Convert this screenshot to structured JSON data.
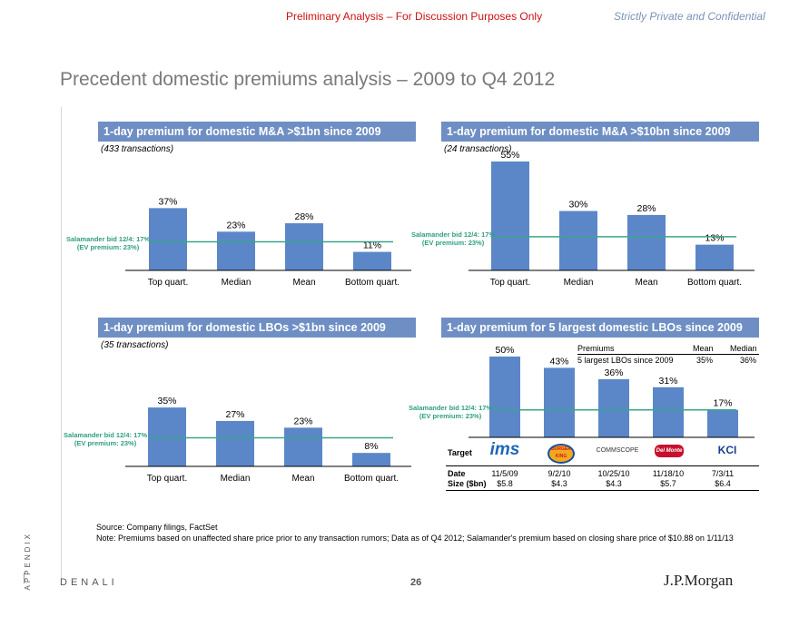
{
  "header": {
    "left_text": "Preliminary Analysis – For Discussion Purposes Only",
    "right_text": "Strictly Private and Confidential"
  },
  "page_title": "Precedent domestic premiums analysis – 2009 to Q4 2012",
  "salamander_label": [
    "Salamander bid 12/4: 17%",
    "(EV premium: 23%)"
  ],
  "colors": {
    "bar": "#5b87c9",
    "reference_line": "#3aa58a",
    "panel_header": "#6f8fc4"
  },
  "chart_data": [
    {
      "type": "bar",
      "title": "1-day premium for domestic M&A >$1bn since 2009",
      "subtitle": "(433 transactions)",
      "categories": [
        "Top quart.",
        "Median",
        "Mean",
        "Bottom quart."
      ],
      "values": [
        37,
        23,
        28,
        11
      ],
      "data_labels": [
        "37%",
        "23%",
        "28%",
        "11%"
      ],
      "reference_line": 17,
      "ylim": [
        0,
        55
      ]
    },
    {
      "type": "bar",
      "title": "1-day premium for domestic M&A >$10bn since 2009",
      "subtitle": "(24 transactions)",
      "categories": [
        "Top quart.",
        "Median",
        "Mean",
        "Bottom quart."
      ],
      "values": [
        55,
        30,
        28,
        13
      ],
      "data_labels": [
        "55%",
        "30%",
        "28%",
        "13%"
      ],
      "reference_line": 17,
      "ylim": [
        0,
        55
      ]
    },
    {
      "type": "bar",
      "title": "1-day premium for domestic LBOs >$1bn since 2009",
      "subtitle": "(35 transactions)",
      "categories": [
        "Top quart.",
        "Median",
        "Mean",
        "Bottom quart."
      ],
      "values": [
        35,
        27,
        23,
        8
      ],
      "data_labels": [
        "35%",
        "27%",
        "23%",
        "8%"
      ],
      "reference_line": 17,
      "ylim": [
        0,
        55
      ]
    },
    {
      "type": "bar",
      "title": "1-day premium for 5 largest domestic LBOs since 2009",
      "categories": [
        "IMS",
        "Burger King",
        "CommScope",
        "Del Monte",
        "KCI"
      ],
      "values": [
        50,
        43,
        36,
        31,
        17
      ],
      "data_labels": [
        "50%",
        "43%",
        "36%",
        "31%",
        "17%"
      ],
      "reference_line": 17,
      "ylim": [
        0,
        55
      ],
      "summary_table": {
        "headers": [
          "Premiums",
          "Mean",
          "Median"
        ],
        "row": [
          "5 largest LBOs since 2009",
          "35%",
          "36%"
        ]
      },
      "target_label": "Target",
      "targets": [
        "ims",
        "BURGER KING",
        "COMMSCOPE",
        "Del Monte",
        "KCI"
      ],
      "date_label": "Date",
      "dates": [
        "11/5/09",
        "9/2/10",
        "10/25/10",
        "11/18/10",
        "7/3/11"
      ],
      "size_label": "Size ($bn)",
      "sizes": [
        "$5.8",
        "$4.3",
        "$4.3",
        "$5.7",
        "$6.4"
      ]
    }
  ],
  "footer": {
    "source": "Source: Company filings, FactSet",
    "note": "Note: Premiums based on unaffected share price prior to any transaction rumors; Data as of Q4 2012; Salamander's premium based on closing share price of $10.88 on 1/11/13",
    "appendix": "APPENDIX",
    "brand": "DENALI",
    "page_number": "26",
    "logo": "J.P.Morgan"
  }
}
